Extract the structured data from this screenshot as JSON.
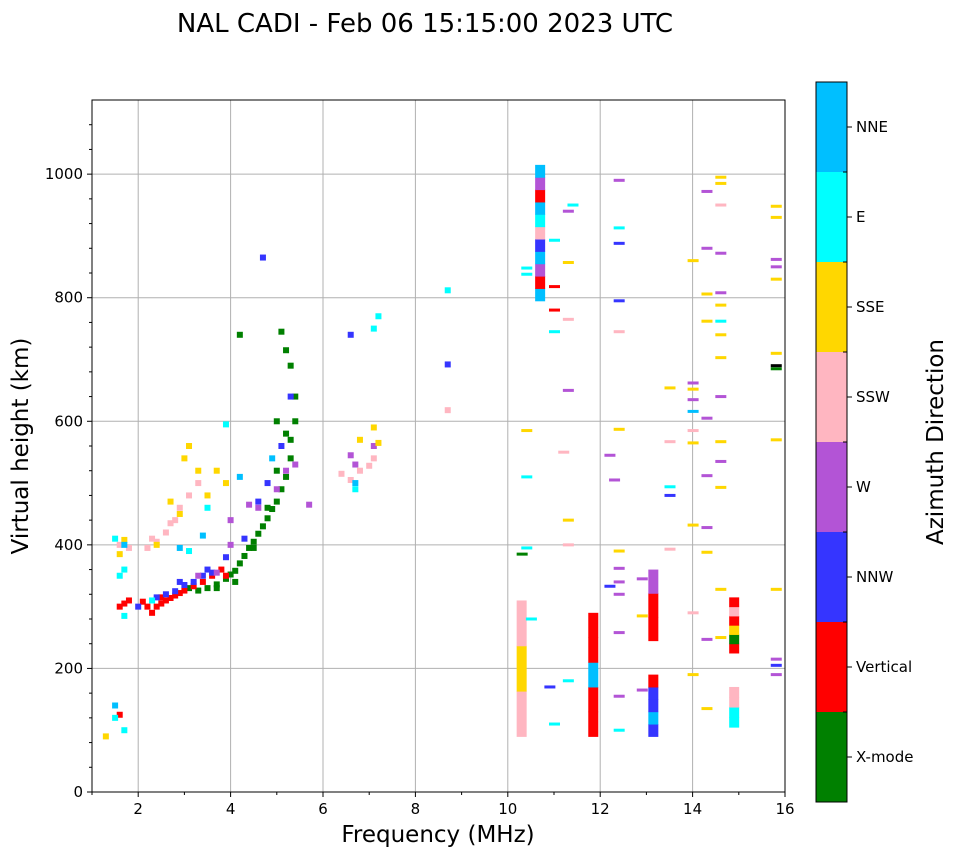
{
  "chart_data": {
    "type": "scatter",
    "title": "NAL CADI - Feb 06 15:15:00 2023 UTC",
    "xlabel": "Frequency (MHz)",
    "ylabel": "Virtual height (km)",
    "xlim": [
      1,
      16
    ],
    "ylim": [
      0,
      1120
    ],
    "xticks": [
      2,
      4,
      6,
      8,
      10,
      12,
      14,
      16
    ],
    "yticks": [
      0,
      200,
      400,
      600,
      800,
      1000
    ],
    "grid": true,
    "colorbar": {
      "label": "Azimuth Direction",
      "categories": [
        "X-mode",
        "Vertical",
        "NNW",
        "W",
        "SSW",
        "SSE",
        "E",
        "NNE"
      ],
      "colors": [
        "#008000",
        "#ff0000",
        "#3535ff",
        "#b354d6",
        "#ffb6c1",
        "#ffd700",
        "#00ffff",
        "#00bfff"
      ]
    },
    "traces": [
      {
        "category": "X-mode",
        "points": [
          [
            3.3,
            326
          ],
          [
            3.5,
            330
          ],
          [
            3.7,
            336
          ],
          [
            3.9,
            345
          ],
          [
            4.0,
            352
          ],
          [
            4.1,
            358
          ],
          [
            4.2,
            370
          ],
          [
            4.3,
            382
          ],
          [
            4.4,
            395
          ],
          [
            4.5,
            405
          ],
          [
            4.6,
            418
          ],
          [
            4.7,
            430
          ],
          [
            4.8,
            443
          ],
          [
            4.9,
            458
          ],
          [
            5.0,
            470
          ],
          [
            5.1,
            490
          ],
          [
            5.2,
            510
          ],
          [
            5.3,
            540
          ],
          [
            5.3,
            570
          ],
          [
            5.4,
            600
          ],
          [
            5.4,
            640
          ],
          [
            5.3,
            690
          ],
          [
            5.2,
            715
          ],
          [
            5.1,
            745
          ],
          [
            4.2,
            740
          ],
          [
            3.1,
            330
          ],
          [
            3.7,
            330
          ],
          [
            4.1,
            340
          ],
          [
            4.5,
            395
          ],
          [
            4.8,
            460
          ],
          [
            5.0,
            520
          ],
          [
            5.2,
            580
          ],
          [
            5.0,
            600
          ]
        ]
      },
      {
        "category": "Vertical",
        "points": [
          [
            2.3,
            290
          ],
          [
            2.4,
            300
          ],
          [
            2.5,
            305
          ],
          [
            2.6,
            310
          ],
          [
            2.7,
            314
          ],
          [
            2.8,
            318
          ],
          [
            2.9,
            322
          ],
          [
            3.0,
            326
          ],
          [
            3.2,
            333
          ],
          [
            3.4,
            340
          ],
          [
            3.6,
            350
          ],
          [
            3.8,
            360
          ],
          [
            1.6,
            300
          ],
          [
            1.7,
            305
          ],
          [
            1.8,
            310
          ],
          [
            2.2,
            300
          ],
          [
            1.6,
            125
          ],
          [
            3.9,
            350
          ],
          [
            2.1,
            308
          ],
          [
            2.5,
            315
          ]
        ]
      },
      {
        "category": "NNW",
        "points": [
          [
            2.4,
            315
          ],
          [
            2.6,
            320
          ],
          [
            2.8,
            325
          ],
          [
            3.0,
            335
          ],
          [
            3.2,
            340
          ],
          [
            3.4,
            350
          ],
          [
            3.6,
            355
          ],
          [
            3.9,
            380
          ],
          [
            4.3,
            410
          ],
          [
            4.6,
            470
          ],
          [
            4.8,
            500
          ],
          [
            5.1,
            560
          ],
          [
            5.3,
            640
          ],
          [
            4.7,
            865
          ],
          [
            8.7,
            692
          ],
          [
            6.6,
            740
          ],
          [
            2.0,
            300
          ],
          [
            2.9,
            340
          ],
          [
            3.5,
            360
          ]
        ]
      },
      {
        "category": "W",
        "points": [
          [
            3.3,
            350
          ],
          [
            3.7,
            355
          ],
          [
            4.0,
            400
          ],
          [
            4.0,
            440
          ],
          [
            4.4,
            465
          ],
          [
            4.6,
            460
          ],
          [
            5.0,
            490
          ],
          [
            5.2,
            520
          ],
          [
            5.4,
            530
          ],
          [
            6.6,
            545
          ],
          [
            6.7,
            530
          ],
          [
            7.1,
            560
          ],
          [
            5.7,
            465
          ]
        ]
      },
      {
        "category": "SSW",
        "points": [
          [
            1.6,
            400
          ],
          [
            1.8,
            395
          ],
          [
            2.2,
            395
          ],
          [
            2.4,
            405
          ],
          [
            2.6,
            420
          ],
          [
            2.8,
            440
          ],
          [
            2.9,
            460
          ],
          [
            3.1,
            480
          ],
          [
            3.3,
            500
          ],
          [
            2.3,
            410
          ],
          [
            2.7,
            435
          ],
          [
            6.4,
            515
          ],
          [
            6.8,
            520
          ],
          [
            7.0,
            528
          ],
          [
            6.6,
            505
          ],
          [
            8.7,
            618
          ],
          [
            7.1,
            540
          ]
        ]
      },
      {
        "category": "SSE",
        "points": [
          [
            1.6,
            385
          ],
          [
            1.7,
            408
          ],
          [
            2.4,
            400
          ],
          [
            2.7,
            470
          ],
          [
            3.0,
            540
          ],
          [
            3.1,
            560
          ],
          [
            3.3,
            520
          ],
          [
            3.7,
            520
          ],
          [
            3.9,
            500
          ],
          [
            6.8,
            570
          ],
          [
            7.1,
            590
          ],
          [
            7.2,
            565
          ],
          [
            1.3,
            90
          ],
          [
            3.5,
            480
          ],
          [
            2.9,
            450
          ]
        ]
      },
      {
        "category": "E",
        "points": [
          [
            1.5,
            410
          ],
          [
            1.6,
            350
          ],
          [
            1.7,
            360
          ],
          [
            1.5,
            120
          ],
          [
            1.7,
            100
          ],
          [
            2.3,
            310
          ],
          [
            3.1,
            390
          ],
          [
            3.5,
            460
          ],
          [
            3.9,
            595
          ],
          [
            7.2,
            770
          ],
          [
            8.7,
            812
          ],
          [
            7.1,
            750
          ],
          [
            1.7,
            285
          ],
          [
            6.7,
            490
          ]
        ]
      },
      {
        "category": "NNE",
        "points": [
          [
            1.5,
            140
          ],
          [
            2.9,
            395
          ],
          [
            3.4,
            415
          ],
          [
            4.2,
            510
          ],
          [
            4.9,
            540
          ],
          [
            6.7,
            500
          ],
          [
            1.7,
            400
          ]
        ]
      }
    ],
    "bands": [
      {
        "x": 10.3,
        "ymin": 90,
        "ymax": 310,
        "colors": [
          "#ffb6c1",
          "#ffd700",
          "#ffb6c1"
        ]
      },
      {
        "x": 10.7,
        "ymin": 795,
        "ymax": 1015,
        "colors": [
          "#00bfff",
          "#ff0000",
          "#b354d6",
          "#00bfff",
          "#3535ff",
          "#ffb6c1",
          "#00ffff",
          "#00bfff",
          "#ff0000",
          "#b354d6",
          "#00bfff"
        ]
      },
      {
        "x": 11.85,
        "ymin": 90,
        "ymax": 290,
        "colors": [
          "#ff0000",
          "#ff0000",
          "#00bfff",
          "#ff0000",
          "#ff0000"
        ]
      },
      {
        "x": 13.15,
        "ymin": 90,
        "ymax": 190,
        "colors": [
          "#3535ff",
          "#00bfff",
          "#3535ff",
          "#3535ff",
          "#ff0000"
        ]
      },
      {
        "x": 13.15,
        "ymin": 245,
        "ymax": 360,
        "colors": [
          "#ff0000",
          "#ff0000",
          "#b354d6"
        ]
      },
      {
        "x": 14.9,
        "ymin": 225,
        "ymax": 315,
        "colors": [
          "#ff0000",
          "#008000",
          "#ffd700",
          "#ff0000",
          "#ffb6c1",
          "#ff0000"
        ]
      },
      {
        "x": 14.9,
        "ymin": 105,
        "ymax": 170,
        "colors": [
          "#00ffff",
          "#00ffff",
          "#ffb6c1",
          "#ffb6c1"
        ]
      }
    ],
    "hlines": [
      [
        10.3,
        385,
        "#008000"
      ],
      [
        10.4,
        395,
        "#00ffff"
      ],
      [
        10.4,
        510,
        "#00ffff"
      ],
      [
        10.4,
        585,
        "#ffd700"
      ],
      [
        10.4,
        838,
        "#00ffff"
      ],
      [
        10.4,
        848,
        "#00ffff"
      ],
      [
        10.5,
        280,
        "#00ffff"
      ],
      [
        10.9,
        170,
        "#3535ff"
      ],
      [
        11.0,
        110,
        "#00ffff"
      ],
      [
        11.0,
        780,
        "#ff0000"
      ],
      [
        11.0,
        818,
        "#ff0000"
      ],
      [
        11.0,
        745,
        "#00ffff"
      ],
      [
        11.0,
        893,
        "#00ffff"
      ],
      [
        11.3,
        440,
        "#ffd700"
      ],
      [
        11.3,
        400,
        "#ffb6c1"
      ],
      [
        11.3,
        650,
        "#b354d6"
      ],
      [
        11.3,
        765,
        "#ffb6c1"
      ],
      [
        11.3,
        857,
        "#ffd700"
      ],
      [
        11.4,
        950,
        "#00ffff"
      ],
      [
        11.2,
        550,
        "#ffb6c1"
      ],
      [
        11.3,
        180,
        "#00ffff"
      ],
      [
        11.3,
        940,
        "#b354d6"
      ],
      [
        12.2,
        545,
        "#b354d6"
      ],
      [
        12.3,
        505,
        "#b354d6"
      ],
      [
        12.4,
        390,
        "#ffd700"
      ],
      [
        12.4,
        340,
        "#b354d6"
      ],
      [
        12.4,
        320,
        "#b354d6"
      ],
      [
        12.4,
        258,
        "#b354d6"
      ],
      [
        12.4,
        155,
        "#b354d6"
      ],
      [
        12.4,
        100,
        "#00ffff"
      ],
      [
        12.4,
        362,
        "#b354d6"
      ],
      [
        12.4,
        587,
        "#ffd700"
      ],
      [
        12.4,
        745,
        "#ffb6c1"
      ],
      [
        12.4,
        795,
        "#3535ff"
      ],
      [
        12.4,
        888,
        "#3535ff"
      ],
      [
        12.4,
        913,
        "#00ffff"
      ],
      [
        12.4,
        990,
        "#b354d6"
      ],
      [
        12.2,
        333,
        "#3535ff"
      ],
      [
        12.9,
        345,
        "#b354d6"
      ],
      [
        12.9,
        285,
        "#ffd700"
      ],
      [
        12.9,
        165,
        "#b354d6"
      ],
      [
        13.5,
        480,
        "#3535ff"
      ],
      [
        13.5,
        494,
        "#00ffff"
      ],
      [
        13.5,
        567,
        "#ffb6c1"
      ],
      [
        13.5,
        654,
        "#ffd700"
      ],
      [
        13.5,
        393,
        "#ffb6c1"
      ],
      [
        14.0,
        190,
        "#ffd700"
      ],
      [
        14.0,
        290,
        "#ffb6c1"
      ],
      [
        14.0,
        432,
        "#ffd700"
      ],
      [
        14.0,
        565,
        "#ffd700"
      ],
      [
        14.0,
        585,
        "#ffb6c1"
      ],
      [
        14.0,
        616,
        "#00bfff"
      ],
      [
        14.0,
        635,
        "#b354d6"
      ],
      [
        14.0,
        652,
        "#ffd700"
      ],
      [
        14.0,
        662,
        "#b354d6"
      ],
      [
        14.0,
        860,
        "#ffd700"
      ],
      [
        14.3,
        135,
        "#ffd700"
      ],
      [
        14.3,
        247,
        "#b354d6"
      ],
      [
        14.3,
        388,
        "#ffd700"
      ],
      [
        14.3,
        428,
        "#b354d6"
      ],
      [
        14.3,
        512,
        "#b354d6"
      ],
      [
        14.3,
        605,
        "#b354d6"
      ],
      [
        14.3,
        762,
        "#ffd700"
      ],
      [
        14.3,
        806,
        "#ffd700"
      ],
      [
        14.3,
        880,
        "#b354d6"
      ],
      [
        14.3,
        972,
        "#b354d6"
      ],
      [
        14.6,
        250,
        "#ffd700"
      ],
      [
        14.6,
        328,
        "#ffd700"
      ],
      [
        14.6,
        493,
        "#ffd700"
      ],
      [
        14.6,
        535,
        "#b354d6"
      ],
      [
        14.6,
        567,
        "#ffd700"
      ],
      [
        14.6,
        640,
        "#b354d6"
      ],
      [
        14.6,
        703,
        "#ffd700"
      ],
      [
        14.6,
        740,
        "#ffd700"
      ],
      [
        14.6,
        762,
        "#00ffff"
      ],
      [
        14.6,
        788,
        "#ffd700"
      ],
      [
        14.6,
        808,
        "#b354d6"
      ],
      [
        14.6,
        872,
        "#b354d6"
      ],
      [
        14.6,
        950,
        "#ffb6c1"
      ],
      [
        14.6,
        985,
        "#ffd700"
      ],
      [
        14.6,
        995,
        "#ffd700"
      ],
      [
        15.8,
        190,
        "#b354d6"
      ],
      [
        15.8,
        205,
        "#3535ff"
      ],
      [
        15.8,
        215,
        "#b354d6"
      ],
      [
        15.8,
        328,
        "#ffd700"
      ],
      [
        15.8,
        570,
        "#ffd700"
      ],
      [
        15.8,
        685,
        "#008000"
      ],
      [
        15.8,
        690,
        "#000000"
      ],
      [
        15.8,
        710,
        "#ffd700"
      ],
      [
        15.8,
        830,
        "#ffd700"
      ],
      [
        15.8,
        850,
        "#b354d6"
      ],
      [
        15.8,
        862,
        "#b354d6"
      ],
      [
        15.8,
        930,
        "#ffd700"
      ],
      [
        15.8,
        948,
        "#ffd700"
      ]
    ]
  }
}
